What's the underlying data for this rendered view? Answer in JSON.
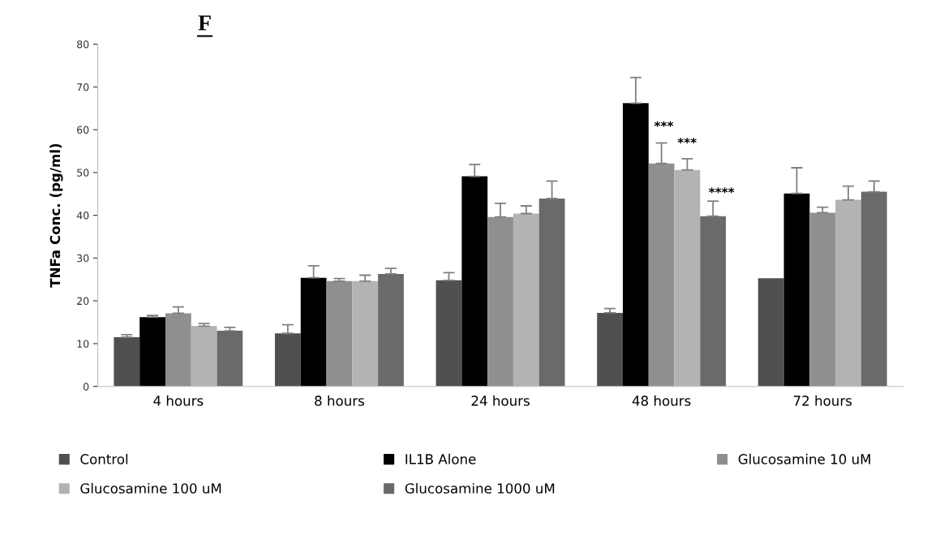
{
  "chart_data": {
    "type": "bar",
    "title": "F",
    "ylabel": "TNFa Conc. (pg/ml)",
    "categories": [
      "4 hours",
      "8 hours",
      "24 hours",
      "48 hours",
      "72 hours"
    ],
    "series": [
      {
        "name": "Control",
        "color": "#505050",
        "values": [
          11.5,
          12.4,
          24.8,
          17.2,
          25.3
        ],
        "errors": [
          [
            11.5,
            12.1
          ],
          [
            12.4,
            14.4
          ],
          [
            24.8,
            26.6
          ],
          [
            17.2,
            18.2
          ],
          null
        ]
      },
      {
        "name": "IL1B Alone",
        "color": "#000000",
        "values": [
          16.2,
          25.4,
          49.1,
          66.2,
          45.1
        ],
        "errors": [
          [
            16.2,
            16.6
          ],
          [
            25.4,
            28.2
          ],
          [
            49.1,
            51.9
          ],
          [
            66.2,
            72.2
          ],
          [
            45.1,
            51.1
          ]
        ]
      },
      {
        "name": "Glucosamine 10 uM",
        "color": "#8f8f8f",
        "values": [
          17.1,
          24.6,
          39.6,
          52.1,
          40.6
        ],
        "errors": [
          [
            17.1,
            18.6
          ],
          [
            24.6,
            25.2
          ],
          [
            39.6,
            42.8
          ],
          [
            52.1,
            56.9
          ],
          [
            40.6,
            41.9
          ]
        ]
      },
      {
        "name": "Glucosamine 100 uM",
        "color": "#b3b3b3",
        "values": [
          14.1,
          24.6,
          40.4,
          50.6,
          43.6
        ],
        "errors": [
          [
            14.1,
            14.7
          ],
          [
            24.6,
            26.0
          ],
          [
            40.4,
            42.2
          ],
          [
            50.6,
            53.2
          ],
          [
            43.6,
            46.8
          ]
        ]
      },
      {
        "name": "Glucosamine 1000 uM",
        "color": "#6a6a6a",
        "values": [
          13.0,
          26.3,
          43.9,
          39.8,
          45.5
        ],
        "errors": [
          [
            13.0,
            13.8
          ],
          [
            26.3,
            27.6
          ],
          [
            43.9,
            48.0
          ],
          [
            39.8,
            43.3
          ],
          [
            45.5,
            48.0
          ]
        ]
      }
    ],
    "ylim": [
      0,
      80
    ],
    "yticks": [
      0,
      10,
      20,
      30,
      40,
      50,
      60,
      70,
      80
    ],
    "grid": false,
    "legend": "bottom",
    "annotations": [
      "***",
      "***",
      "****"
    ]
  }
}
